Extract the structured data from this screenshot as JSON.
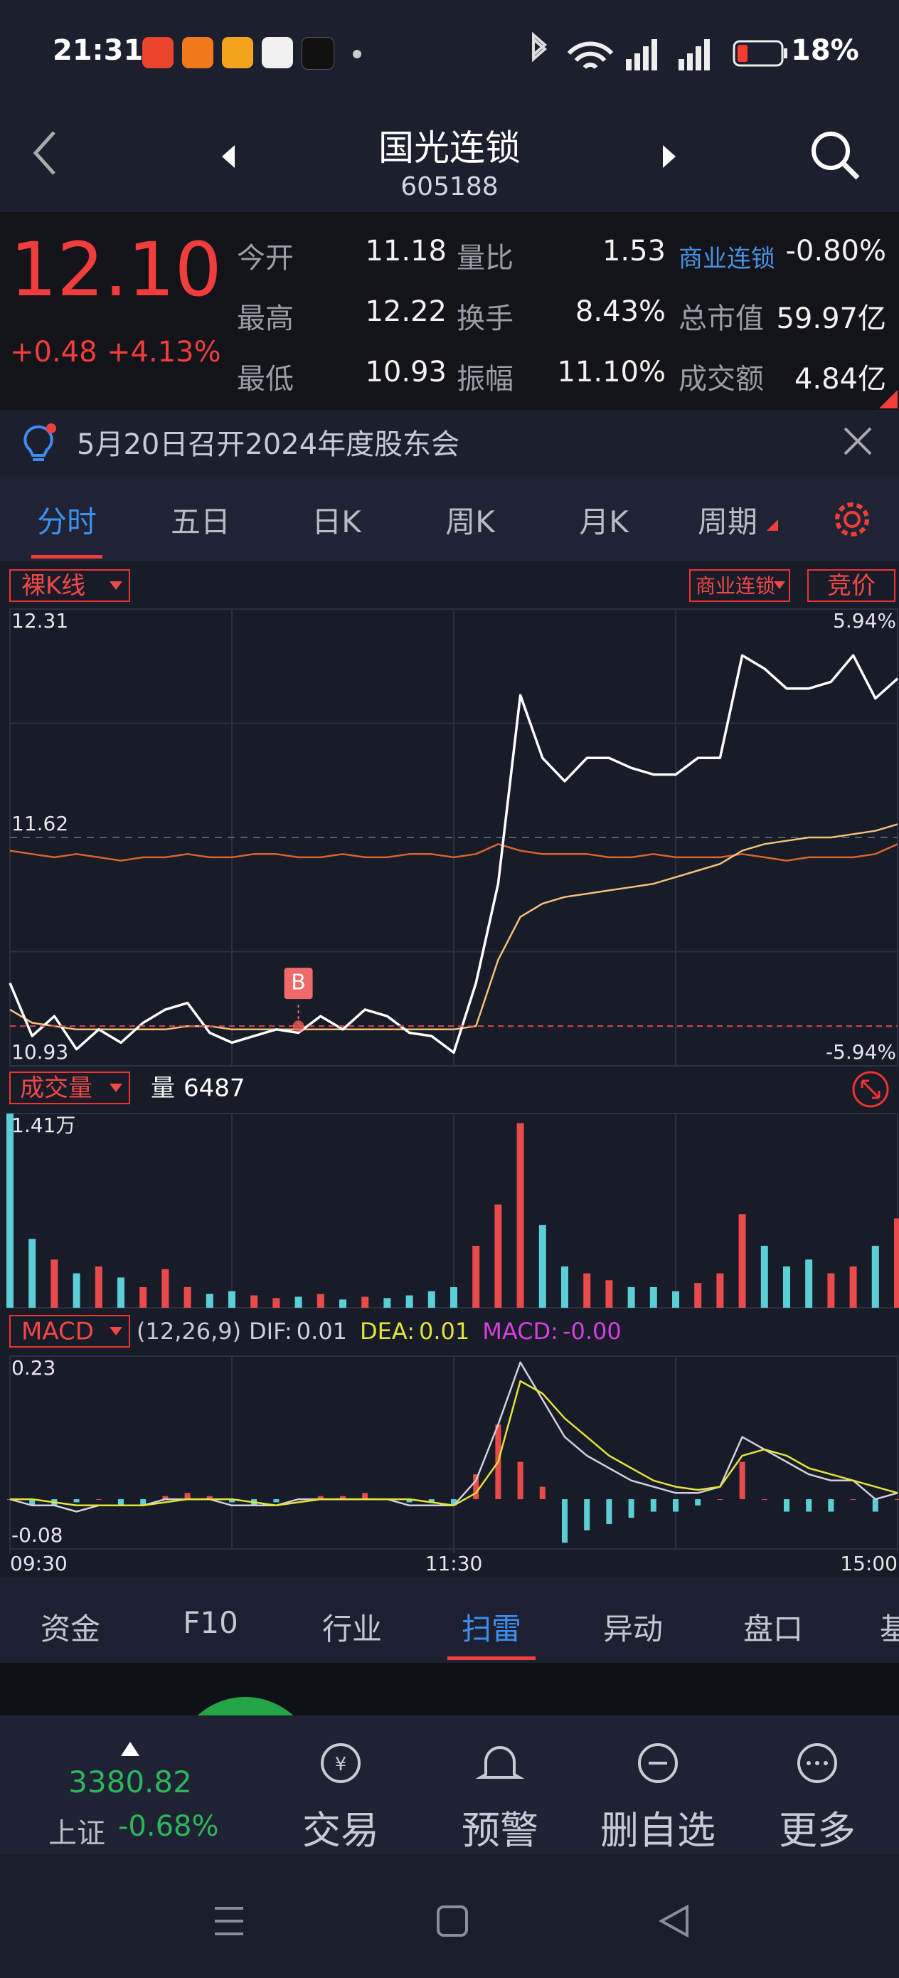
{
  "status": {
    "time": "21:31",
    "battery": "18%"
  },
  "header": {
    "title": "国光连锁",
    "code": "605188"
  },
  "quote": {
    "price": "12.10",
    "change": "+0.48",
    "change_pct": "+4.13%",
    "stats": [
      [
        "今开",
        "11.18",
        "量比",
        "1.53",
        "商业连锁",
        "-0.80%"
      ],
      [
        "最高",
        "12.22",
        "换手",
        "8.43%",
        "总市值",
        "59.97亿"
      ],
      [
        "最低",
        "10.93",
        "振幅",
        "11.10%",
        "成交额",
        "4.84亿"
      ]
    ]
  },
  "notice": "5月20日召开2024年度股东会",
  "tabs": {
    "items": [
      "分时",
      "五日",
      "日K",
      "周K",
      "月K",
      "周期"
    ],
    "active": 0
  },
  "chart_data": [
    {
      "type": "line",
      "mode_label": "裸K线",
      "auction_label": "竞价",
      "x": [
        0,
        6,
        12,
        18,
        24,
        30,
        36,
        42,
        48,
        54,
        60,
        66,
        72,
        78,
        84,
        90,
        96,
        102,
        108,
        114,
        120,
        126,
        132,
        138,
        144,
        150,
        156,
        162,
        168,
        174,
        180,
        186,
        192,
        198,
        204,
        210,
        216,
        222,
        228,
        234,
        240
      ],
      "xlim": [
        0,
        240
      ],
      "ylim": [
        10.93,
        12.31
      ],
      "yticks": [
        12.31,
        11.62,
        10.93
      ],
      "y2lim": [
        -5.94,
        5.94
      ],
      "y2ticks": [
        {
          "value": 5.94,
          "label": "5.94%"
        },
        {
          "value": -5.94,
          "label": "-5.94%"
        }
      ],
      "series": [
        {
          "name": "商业连锁",
          "color": "#d9652b",
          "values": [
            11.58,
            11.57,
            11.56,
            11.57,
            11.56,
            11.55,
            11.56,
            11.56,
            11.57,
            11.56,
            11.56,
            11.57,
            11.57,
            11.56,
            11.56,
            11.57,
            11.56,
            11.56,
            11.57,
            11.57,
            11.56,
            11.57,
            11.6,
            11.58,
            11.57,
            11.57,
            11.57,
            11.56,
            11.56,
            11.57,
            11.56,
            11.56,
            11.56,
            11.57,
            11.56,
            11.55,
            11.56,
            11.56,
            11.56,
            11.57,
            11.6
          ]
        },
        {
          "color": "#f2c27a",
          "values": [
            11.1,
            11.06,
            11.05,
            11.04,
            11.04,
            11.04,
            11.04,
            11.04,
            11.05,
            11.05,
            11.04,
            11.04,
            11.04,
            11.04,
            11.04,
            11.04,
            11.04,
            11.04,
            11.04,
            11.04,
            11.04,
            11.05,
            11.25,
            11.38,
            11.42,
            11.44,
            11.45,
            11.46,
            11.47,
            11.48,
            11.5,
            11.52,
            11.54,
            11.58,
            11.6,
            11.61,
            11.62,
            11.62,
            11.63,
            11.64,
            11.66
          ]
        },
        {
          "color": "#ffffff",
          "values": [
            11.18,
            11.02,
            11.08,
            10.98,
            11.04,
            11.0,
            11.06,
            11.1,
            11.12,
            11.03,
            11.0,
            11.02,
            11.04,
            11.03,
            11.08,
            11.04,
            11.1,
            11.08,
            11.03,
            11.02,
            10.97,
            11.18,
            11.48,
            12.05,
            11.86,
            11.79,
            11.86,
            11.86,
            11.83,
            11.81,
            11.81,
            11.86,
            11.86,
            12.17,
            12.13,
            12.07,
            12.07,
            12.09,
            12.17,
            12.04,
            12.1
          ]
        }
      ],
      "annotations": [
        {
          "text": "B",
          "x": 78,
          "y": 11.05
        }
      ]
    },
    {
      "type": "bar",
      "title": "成交量",
      "volume_label": "量",
      "x": [
        0,
        6,
        12,
        18,
        24,
        30,
        36,
        42,
        48,
        54,
        60,
        66,
        72,
        78,
        84,
        90,
        96,
        102,
        108,
        114,
        120,
        126,
        132,
        138,
        144,
        150,
        156,
        162,
        168,
        174,
        180,
        186,
        192,
        198,
        204,
        210,
        216,
        222,
        228,
        234,
        240
      ],
      "xlim": [
        0,
        240
      ],
      "ylim": [
        0,
        14100
      ],
      "yticks": [
        {
          "value": 14100,
          "label": "1.41万"
        }
      ],
      "values": [
        14100,
        5000,
        3500,
        2500,
        3000,
        2200,
        1500,
        2800,
        1500,
        1000,
        1200,
        900,
        700,
        800,
        1000,
        600,
        800,
        700,
        900,
        1200,
        1500,
        4500,
        7500,
        13400,
        6000,
        3000,
        2500,
        2000,
        1500,
        1500,
        1200,
        1800,
        2500,
        6800,
        4500,
        3000,
        3500,
        2500,
        3000,
        4500,
        6487
      ],
      "colors": [
        "#5bcfd6",
        "#5bcfd6",
        "#e94b4b",
        "#5bcfd6",
        "#e94b4b",
        "#5bcfd6",
        "#e94b4b",
        "#e94b4b",
        "#e94b4b",
        "#5bcfd6",
        "#5bcfd6",
        "#e94b4b",
        "#e94b4b",
        "#5bcfd6",
        "#e94b4b",
        "#5bcfd6",
        "#e94b4b",
        "#5bcfd6",
        "#5bcfd6",
        "#5bcfd6",
        "#5bcfd6",
        "#e94b4b",
        "#e94b4b",
        "#e94b4b",
        "#5bcfd6",
        "#5bcfd6",
        "#e94b4b",
        "#e94b4b",
        "#5bcfd6",
        "#5bcfd6",
        "#5bcfd6",
        "#e94b4b",
        "#e94b4b",
        "#e94b4b",
        "#5bcfd6",
        "#5bcfd6",
        "#5bcfd6",
        "#e94b4b",
        "#e94b4b",
        "#5bcfd6",
        "#e94b4b"
      ]
    },
    {
      "type": "macd",
      "title": "MACD",
      "params": "(12,26,9)",
      "legend": [
        {
          "label": "DIF:",
          "value": 0.01,
          "color": "#d0d1da"
        },
        {
          "label": "DEA:",
          "value": 0.01,
          "color": "#e3e33a"
        },
        {
          "label": "MACD:",
          "value": 0,
          "value_label": "-0.00",
          "color": "#d640e0"
        }
      ],
      "x": [
        0,
        6,
        12,
        18,
        24,
        30,
        36,
        42,
        48,
        54,
        60,
        66,
        72,
        78,
        84,
        90,
        96,
        102,
        108,
        114,
        120,
        126,
        132,
        138,
        144,
        150,
        156,
        162,
        168,
        174,
        180,
        186,
        192,
        198,
        204,
        210,
        216,
        222,
        228,
        234,
        240
      ],
      "xlim": [
        0,
        240
      ],
      "xticks": [
        {
          "value": 0,
          "label": "09:30"
        },
        {
          "value": 120,
          "label": "11:30"
        },
        {
          "value": 240,
          "label": "15:00"
        }
      ],
      "ylim": [
        -0.08,
        0.23
      ],
      "yticks": [
        0.23,
        -0.08
      ],
      "up_color": "#e94b4b",
      "down_color": "#5bcfd6",
      "histogram": [
        0.0,
        -0.01,
        -0.01,
        -0.005,
        0.0,
        -0.01,
        -0.01,
        0.005,
        0.01,
        0.005,
        -0.005,
        -0.01,
        -0.005,
        0.0,
        0.005,
        0.005,
        0.01,
        0.0,
        -0.005,
        -0.005,
        -0.01,
        0.04,
        0.12,
        0.06,
        0.02,
        -0.07,
        -0.05,
        -0.04,
        -0.03,
        -0.02,
        -0.02,
        -0.01,
        0.0,
        0.06,
        0.0,
        -0.02,
        -0.02,
        -0.02,
        0.0,
        -0.02,
        0.0
      ],
      "series": [
        {
          "color": "#d0d1da",
          "values": [
            0.0,
            -0.01,
            -0.01,
            -0.02,
            -0.01,
            -0.01,
            -0.01,
            0.0,
            0.0,
            0.0,
            -0.01,
            -0.01,
            -0.01,
            0.0,
            0.0,
            0.0,
            0.0,
            0.0,
            -0.01,
            -0.01,
            -0.01,
            0.03,
            0.12,
            0.22,
            0.16,
            0.1,
            0.07,
            0.05,
            0.03,
            0.02,
            0.01,
            0.01,
            0.02,
            0.1,
            0.08,
            0.06,
            0.04,
            0.03,
            0.03,
            0.0,
            0.01
          ]
        },
        {
          "color": "#e3e33a",
          "values": [
            0.0,
            0.0,
            -0.005,
            -0.01,
            -0.01,
            -0.01,
            -0.01,
            -0.005,
            0.0,
            0.0,
            0.0,
            -0.005,
            -0.01,
            -0.005,
            0.0,
            0.0,
            0.0,
            0.0,
            0.0,
            -0.005,
            -0.01,
            0.01,
            0.06,
            0.19,
            0.17,
            0.13,
            0.1,
            0.07,
            0.05,
            0.03,
            0.02,
            0.015,
            0.02,
            0.07,
            0.08,
            0.07,
            0.05,
            0.04,
            0.03,
            0.02,
            0.01
          ]
        }
      ]
    }
  ],
  "bottom_tabs": {
    "items": [
      "资金",
      "F10",
      "行业",
      "扫雷",
      "异动",
      "盘口",
      "基"
    ],
    "active": 3
  },
  "footer": {
    "index_value": "3380.82",
    "index_name": "上证",
    "index_change": "-0.68%",
    "actions": [
      "交易",
      "预警",
      "删自选",
      "更多"
    ]
  }
}
